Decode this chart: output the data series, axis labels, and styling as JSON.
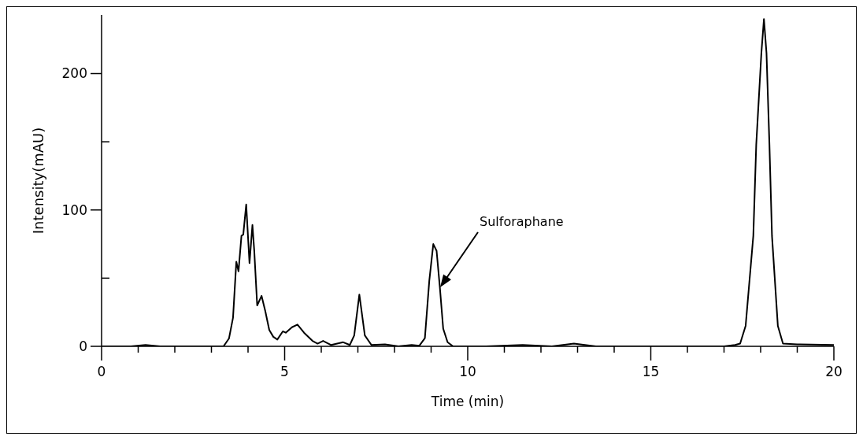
{
  "chart_data": {
    "type": "line",
    "xlabel": "Time (min)",
    "ylabel": "Intensity(mAU)",
    "xlim": [
      0,
      20
    ],
    "ylim": [
      0,
      243
    ],
    "xticks": [
      0,
      {
        "value": 1,
        "label": null
      },
      {
        "value": 2,
        "label": null
      },
      {
        "value": 3,
        "label": null
      },
      {
        "value": 4,
        "label": null
      },
      5,
      {
        "value": 6,
        "label": null
      },
      {
        "value": 7,
        "label": null
      },
      {
        "value": 8,
        "label": null
      },
      {
        "value": 9,
        "label": null
      },
      10,
      {
        "value": 11,
        "label": null
      },
      {
        "value": 12,
        "label": null
      },
      {
        "value": 13,
        "label": null
      },
      {
        "value": 14,
        "label": null
      },
      15,
      {
        "value": 16,
        "label": null
      },
      {
        "value": 17,
        "label": null
      },
      {
        "value": 18,
        "label": null
      },
      {
        "value": 19,
        "label": null
      },
      20
    ],
    "yticks": [
      0,
      {
        "value": 50,
        "label": null
      },
      100,
      {
        "value": 150,
        "label": null
      },
      200
    ],
    "grid": false,
    "legend": false,
    "marker": "none",
    "line_style": "solid",
    "annotations": [
      "Sulforaphane"
    ],
    "series": [
      {
        "color": "#000000",
        "x": [
          0,
          0.8,
          1.2,
          1.6,
          2.5,
          3.11,
          3.33,
          3.48,
          3.59,
          3.68,
          3.74,
          3.82,
          3.87,
          3.95,
          4.04,
          4.12,
          4.17,
          4.25,
          4.37,
          4.47,
          4.58,
          4.69,
          4.8,
          4.95,
          5.03,
          5.2,
          5.35,
          5.53,
          5.76,
          5.9,
          6.05,
          6.27,
          6.6,
          6.78,
          6.9,
          7.04,
          7.19,
          7.37,
          7.74,
          8.11,
          8.47,
          8.68,
          8.83,
          8.95,
          9.06,
          9.15,
          9.24,
          9.33,
          9.45,
          9.6,
          10.5,
          11.5,
          12.3,
          12.9,
          13.5,
          15,
          17,
          17.3,
          17.44,
          17.59,
          17.8,
          17.88,
          18.02,
          18.09,
          18.16,
          18.24,
          18.31,
          18.47,
          18.61,
          19,
          20
        ],
        "values": [
          0,
          0,
          1,
          0,
          0,
          0,
          0,
          5.8,
          21,
          62,
          55,
          81,
          82,
          104,
          61,
          89,
          70,
          30,
          37,
          26,
          12,
          7,
          5,
          11,
          10,
          14,
          16,
          10,
          4,
          2,
          4,
          1,
          3,
          1,
          8,
          38,
          8,
          1,
          1.5,
          0,
          1,
          0.5,
          6,
          48,
          75,
          70,
          43,
          13,
          3,
          0,
          0,
          1,
          0,
          2,
          0,
          0,
          0,
          1,
          2,
          15,
          81,
          148,
          215,
          240,
          215,
          148,
          81,
          15,
          2,
          1.5,
          1
        ]
      }
    ]
  }
}
